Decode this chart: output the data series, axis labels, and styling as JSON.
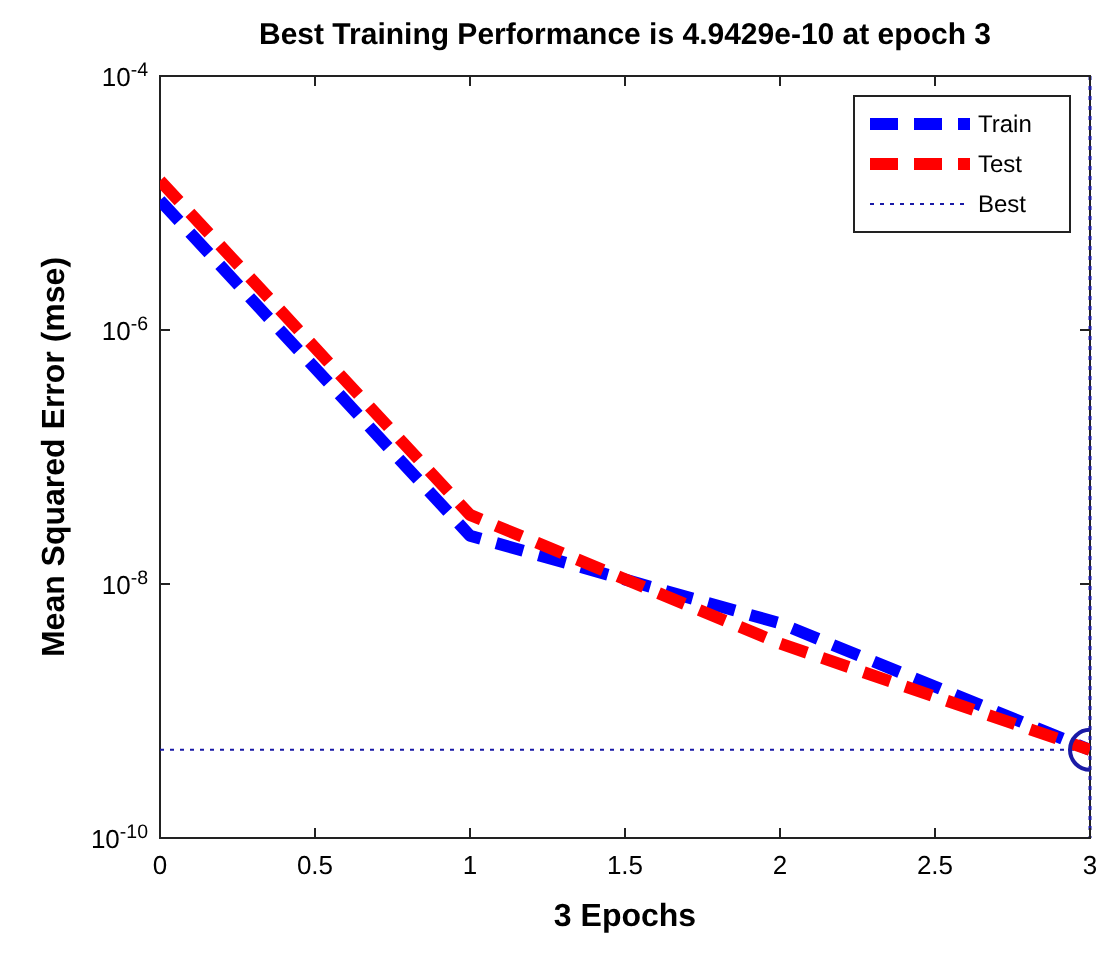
{
  "chart_data": {
    "type": "line",
    "title": "Best Training Performance is 4.9429e-10 at epoch 3",
    "xlabel": "3 Epochs",
    "ylabel": "Mean Squared Error  (mse)",
    "log": "y",
    "xlim": [
      0,
      3
    ],
    "xticks": [
      0,
      0.5,
      1,
      1.5,
      2,
      2.5,
      3
    ],
    "ylim": [
      1e-10,
      0.0001
    ],
    "yticks": [
      {
        "value": 1e-10,
        "label": "10$^{-10}$"
      },
      {
        "value": 1e-08,
        "label": "10$^{-8}$"
      },
      {
        "value": 1e-06,
        "label": "10$^{-6}$"
      },
      {
        "value": 0.0001,
        "label": "10$^{-4}$"
      }
    ],
    "grid": false,
    "legend": "top right",
    "line_style": "dashed",
    "x": [
      0,
      1,
      2,
      3
    ],
    "series": [
      {
        "name": "Train",
        "color": "#0000ff",
        "values": [
          1.05e-05,
          2.4e-08,
          4.9e-09,
          4.9429e-10
        ]
      },
      {
        "name": "Test",
        "color": "#ff0000",
        "values": [
          1.5e-05,
          3.5e-08,
          3.4e-09,
          4.9429e-10
        ]
      },
      {
        "name": "Best",
        "type": "scatter",
        "color": "#1a1aa6",
        "x": [
          3
        ],
        "values": [
          4.9429e-10
        ],
        "marker": "circle",
        "line_style": "dotted"
      }
    ],
    "ref_lines": [
      {
        "axis": "y",
        "value": 4.9429e-10,
        "color": "#1a1aa6",
        "line_style": "dotted"
      },
      {
        "axis": "x",
        "value": 3,
        "color": "#1a1aa6",
        "line_style": "dotted"
      }
    ]
  }
}
